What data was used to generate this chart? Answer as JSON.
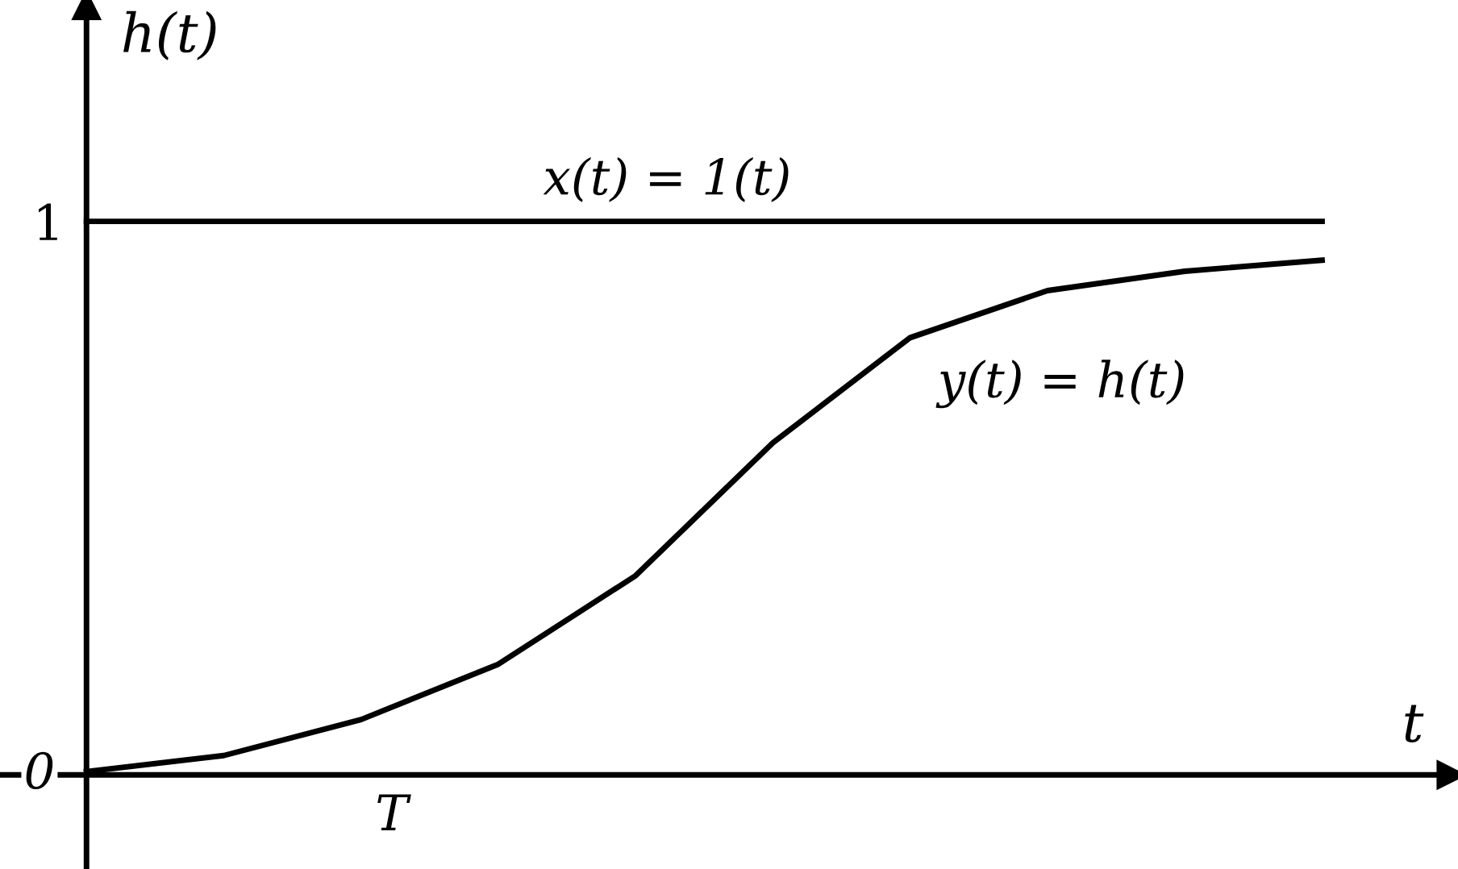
{
  "chart_data": {
    "type": "line",
    "xlabel": "t",
    "ylabel": "h(t)",
    "categories": [
      null,
      null,
      null,
      null,
      null,
      null,
      null,
      null,
      null,
      null
    ],
    "ylim": [
      -0.17,
      1.4
    ],
    "yticks": [
      {
        "value": 0,
        "label": "0"
      },
      {
        "value": 1,
        "label": "1"
      }
    ],
    "grid": false,
    "legend": false,
    "marker": "none",
    "line_style": "solid",
    "annotations": [
      "T"
    ],
    "series": [
      {
        "name": "x(t) = 1(t)",
        "color": "#000000",
        "values": [
          1,
          1,
          1,
          1,
          1,
          1,
          1,
          1,
          1,
          1
        ]
      },
      {
        "name": "y(t) = h(t)",
        "color": "#000000",
        "values": [
          0.006,
          0.035,
          0.1,
          0.2,
          0.36,
          0.6,
          0.79,
          0.875,
          0.91,
          0.93
        ]
      }
    ]
  }
}
